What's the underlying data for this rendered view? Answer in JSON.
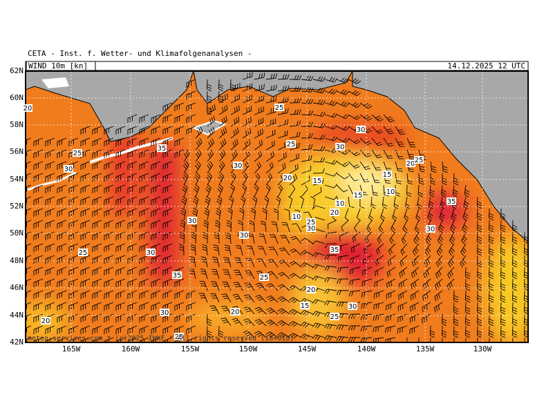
{
  "header": {
    "title": "CETA - Inst. f. Wetter- und Klimafolgenanalysen -",
    "parameter": "WIND 10m [kn]",
    "datetime": "14.12.2025 12 UTC"
  },
  "map": {
    "lat_labels": [
      "62N",
      "60N",
      "58N",
      "56N",
      "54N",
      "52N",
      "50N",
      "48N",
      "46N",
      "44N",
      "42N"
    ],
    "lon_labels": [
      "165W",
      "160W",
      "155W",
      "150W",
      "145W",
      "140W",
      "135W",
      "130W"
    ],
    "contour_labels": [
      "20",
      "25",
      "30",
      "25",
      "30",
      "35",
      "25",
      "30",
      "30",
      "20",
      "25",
      "15",
      "20",
      "15",
      "10",
      "15",
      "10",
      "20",
      "35",
      "10",
      "25",
      "30",
      "30",
      "30",
      "30",
      "35",
      "25",
      "30",
      "35",
      "25",
      "20",
      "15",
      "30",
      "30",
      "20",
      "25",
      "20",
      "25"
    ]
  },
  "footer": {
    "credit": "meteo-services.com * (c)2025 IWKF * All rights reserved (18+018)"
  }
}
